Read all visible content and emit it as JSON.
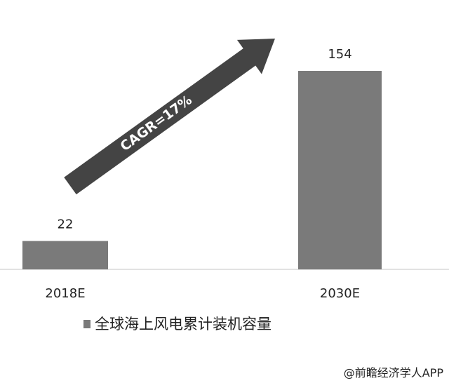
{
  "chart_data": {
    "type": "bar",
    "title": "",
    "categories": [
      "2018E",
      "2030E"
    ],
    "series": [
      {
        "name": "全球海上风电累计装机容量",
        "values": [
          22,
          154
        ],
        "color": "#7a7a7a"
      }
    ],
    "data_labels": [
      "22",
      "154"
    ],
    "ylim": [
      0,
      154
    ],
    "grid": false,
    "legend_position": "bottom",
    "annotation": {
      "text": "CAGR=17%",
      "arrow_color": "#444444"
    }
  },
  "source": "@前瞻经济学人APP"
}
